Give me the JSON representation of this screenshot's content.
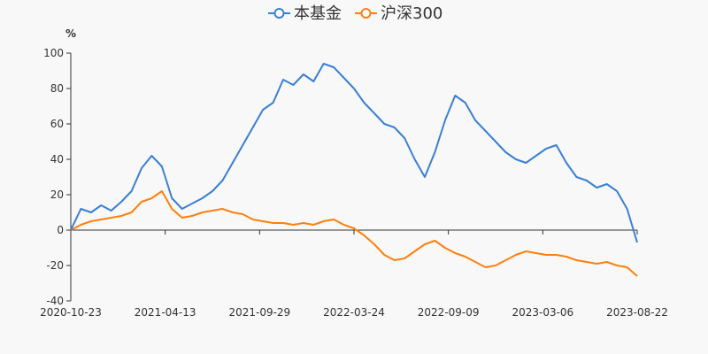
{
  "chart_data": {
    "type": "line",
    "unit_label": "%",
    "ylim": [
      -40,
      100
    ],
    "y_ticks": [
      -40,
      -20,
      0,
      20,
      40,
      60,
      80,
      100
    ],
    "x_tick_labels": [
      "2020-10-23",
      "2021-04-13",
      "2021-09-29",
      "2022-03-24",
      "2022-09-09",
      "2023-03-06",
      "2023-08-22"
    ],
    "legend": {
      "position": "top-center"
    },
    "x_points": 57,
    "series": [
      {
        "name": "本基金",
        "color": "#3a7fd5",
        "values": [
          0,
          12,
          10,
          14,
          11,
          16,
          22,
          35,
          42,
          36,
          18,
          12,
          15,
          18,
          22,
          28,
          38,
          48,
          58,
          68,
          72,
          85,
          82,
          88,
          84,
          94,
          92,
          86,
          80,
          72,
          66,
          60,
          58,
          52,
          40,
          30,
          44,
          62,
          76,
          72,
          62,
          56,
          50,
          44,
          40,
          38,
          42,
          46,
          48,
          38,
          30,
          28,
          24,
          26,
          22,
          12,
          -7
        ]
      },
      {
        "name": "沪深300",
        "color": "#ff7f0e",
        "values": [
          0,
          3,
          5,
          6,
          7,
          8,
          10,
          16,
          18,
          22,
          12,
          7,
          8,
          10,
          11,
          12,
          10,
          9,
          6,
          5,
          4,
          4,
          3,
          4,
          3,
          5,
          6,
          3,
          1,
          -3,
          -8,
          -14,
          -17,
          -16,
          -12,
          -8,
          -6,
          -10,
          -13,
          -15,
          -18,
          -21,
          -20,
          -17,
          -14,
          -12,
          -13,
          -14,
          -14,
          -15,
          -17,
          -18,
          -19,
          -18,
          -20,
          -21,
          -26
        ]
      }
    ]
  }
}
